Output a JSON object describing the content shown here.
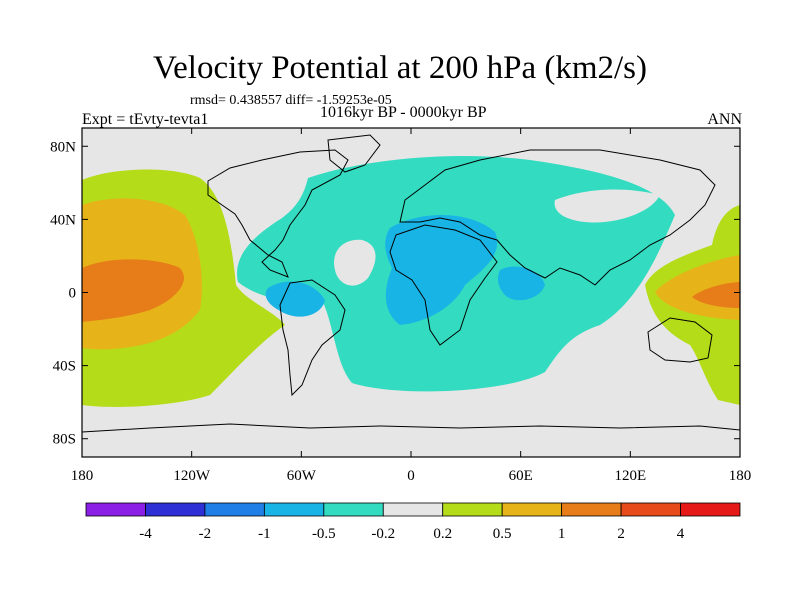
{
  "title": "Velocity Potential at 200 hPa (km2/s)",
  "stats_line": "rmsd= 0.438557 diff= -1.59253e-05",
  "period_line": "1016kyr BP - 0000kyr BP",
  "experiment_label": "Expt = tEvty-tevta1",
  "season_label": "ANN",
  "map": {
    "projection": "cylindrical-equidistant",
    "lon_range": [
      -180,
      180
    ],
    "lat_range": [
      -90,
      90
    ],
    "y_tick_labels": [
      {
        "label": "80N",
        "lat": 80
      },
      {
        "label": "40N",
        "lat": 40
      },
      {
        "label": "0",
        "lat": 0
      },
      {
        "label": "40S",
        "lat": -40
      },
      {
        "label": "80S",
        "lat": -80
      }
    ],
    "x_tick_labels": [
      {
        "label": "180",
        "lon": -180
      },
      {
        "label": "120W",
        "lon": -120
      },
      {
        "label": "60W",
        "lon": -60
      },
      {
        "label": "0",
        "lon": 0
      },
      {
        "label": "60E",
        "lon": 60
      },
      {
        "label": "120E",
        "lon": 120
      },
      {
        "label": "180",
        "lon": 180
      }
    ]
  },
  "colorbar": {
    "colors": [
      "#8c1fe6",
      "#2f2fd6",
      "#1f7fe6",
      "#19b4e6",
      "#33dcc0",
      "#e6e6e6",
      "#b4dc19",
      "#e6b419",
      "#e67d19",
      "#e64b19",
      "#e61919"
    ],
    "labels": [
      "-4",
      "-2",
      "-1",
      "-0.5",
      "-0.2",
      "0.2",
      "0.5",
      "1",
      "2",
      "4"
    ]
  },
  "chart_data": {
    "type": "filled-contour-map",
    "title": "Velocity Potential at 200 hPa (km2/s)",
    "subtitle": "1016kyr BP - 0000kyr BP",
    "variable_units": "km2/s",
    "contour_levels": [
      -4,
      -2,
      -1,
      -0.5,
      -0.2,
      0.2,
      0.5,
      1,
      2,
      4
    ],
    "background_value_range": [
      -0.2,
      0.2
    ],
    "features": [
      {
        "name": "central-pacific-positive",
        "lon_center": -155,
        "lat_center": 5,
        "level_range": [
          1,
          2
        ]
      },
      {
        "name": "pacific-positive-outer",
        "lon_center": -150,
        "lat_center": 10,
        "level_range": [
          0.5,
          1
        ]
      },
      {
        "name": "pacific-positive-edge",
        "lon_center": -145,
        "lat_center": 10,
        "level_range": [
          0.2,
          0.5
        ]
      },
      {
        "name": "western-pacific-positive",
        "lon_center": 165,
        "lat_center": 0,
        "level_range": [
          1,
          2
        ]
      },
      {
        "name": "atlantic-africa-negative",
        "lon_center": 10,
        "lat_center": 10,
        "level_range": [
          -0.5,
          -0.2
        ]
      },
      {
        "name": "africa-negative-core",
        "lon_center": 10,
        "lat_center": 15,
        "level_range": [
          -1,
          -0.5
        ]
      },
      {
        "name": "caribbean-negative-core",
        "lon_center": -65,
        "lat_center": 5,
        "level_range": [
          -1,
          -0.5
        ]
      }
    ]
  }
}
